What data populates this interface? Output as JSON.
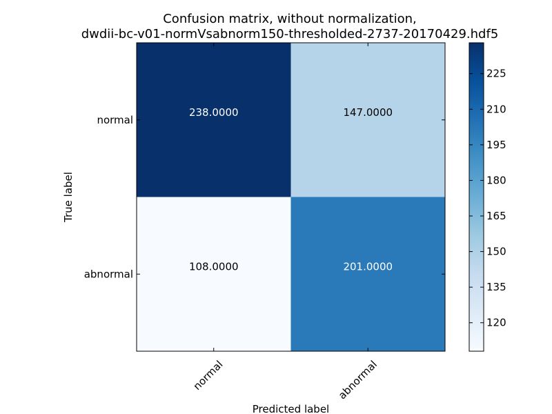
{
  "chart_data": {
    "type": "heatmap",
    "title_lines": [
      "Confusion matrix, without normalization,",
      "dwdii-bc-v01-normVsabnorm150-thresholded-2737-20170429.hdf5"
    ],
    "xlabel": "Predicted label",
    "ylabel": "True label",
    "x_categories": [
      "normal",
      "abnormal"
    ],
    "y_categories": [
      "normal",
      "abnormal"
    ],
    "matrix": [
      [
        238,
        147
      ],
      [
        108,
        201
      ]
    ],
    "cell_labels": [
      [
        "238.0000",
        "147.0000"
      ],
      [
        "108.0000",
        "201.0000"
      ]
    ],
    "colormap": "Blues",
    "colorbar": {
      "range": [
        108,
        238
      ],
      "ticks": [
        120,
        135,
        150,
        165,
        180,
        195,
        210,
        225
      ]
    }
  }
}
